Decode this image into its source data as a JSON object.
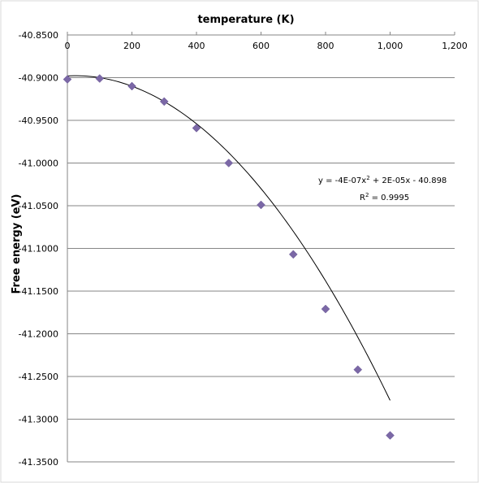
{
  "chart_data": {
    "type": "scatter",
    "xlabel": "temperature (K)",
    "ylabel": "Free energy (eV)",
    "xlim": [
      0,
      1200
    ],
    "ylim": [
      -41.35,
      -40.85
    ],
    "x_ticks": [
      "0",
      "200",
      "400",
      "600",
      "800",
      "1,000",
      "1,200"
    ],
    "y_ticks": [
      "-40.8500",
      "-40.9000",
      "-40.9500",
      "-41.0000",
      "-41.0500",
      "-41.1000",
      "-41.1500",
      "-41.2000",
      "-41.2500",
      "-41.3000",
      "-41.3500"
    ],
    "grid": "horizontal",
    "marker_color": "#7b68a6",
    "series": [
      {
        "x": [
          0,
          100,
          200,
          300,
          400,
          500,
          600,
          700,
          800,
          900,
          1000
        ],
        "y": [
          -40.902,
          -40.901,
          -40.91,
          -40.928,
          -40.959,
          -41.0,
          -41.049,
          -41.107,
          -41.171,
          -41.242,
          -41.319
        ]
      }
    ],
    "trendline": {
      "type": "polynomial",
      "order": 2,
      "coefficients": [
        -4e-07,
        2e-05,
        -40.898
      ],
      "equation_prefix": "y = -4E-07x",
      "equation_suffix": " + 2E-05x - 40.898",
      "r2_prefix": "R",
      "r2_suffix": " = 0.9995"
    }
  }
}
